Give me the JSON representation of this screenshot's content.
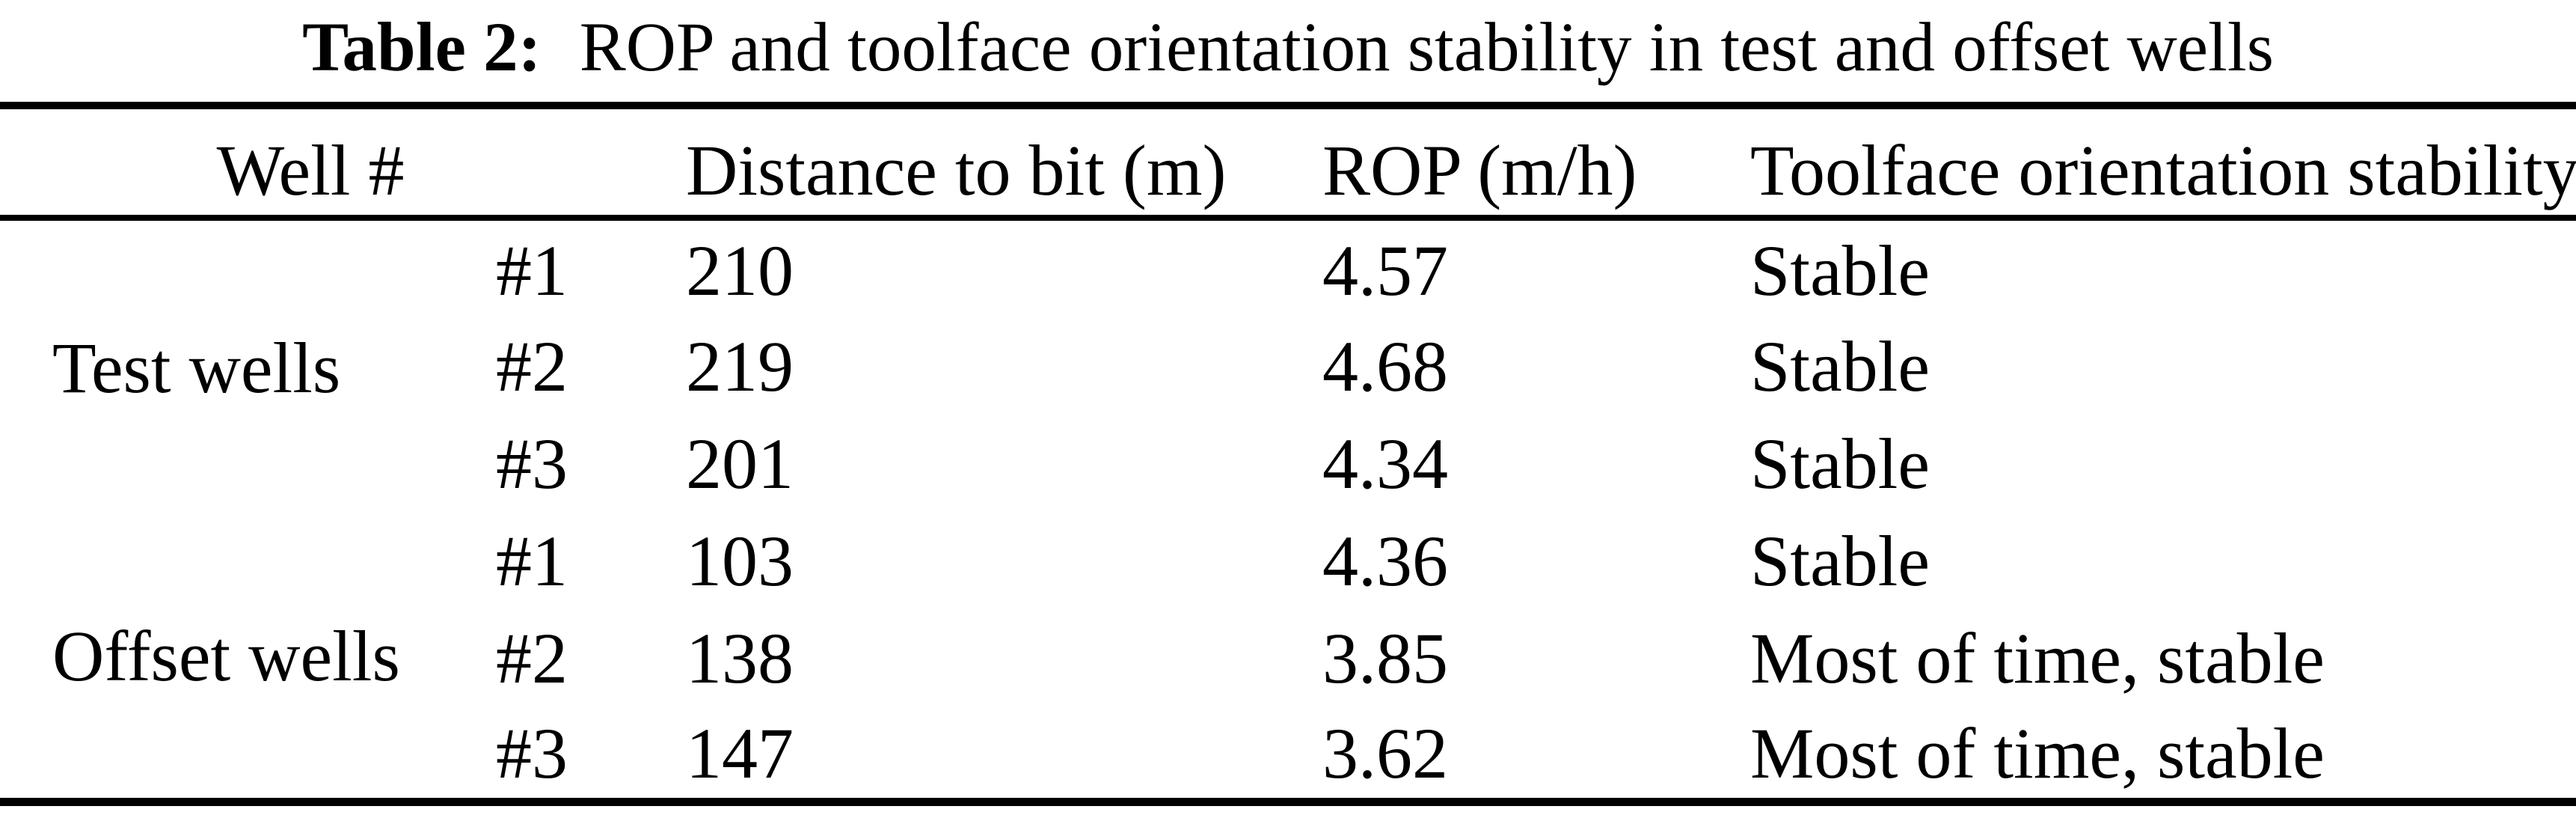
{
  "page": {
    "background": "#ffffff",
    "text_color": "#000000",
    "rule_color": "#000000"
  },
  "title": {
    "label": "Table 2:",
    "text": "ROP and toolface orientation stability in test and offset wells"
  },
  "table": {
    "headers": {
      "well": "Well #",
      "distance": "Distance to bit (m)",
      "rop": "ROP (m/h)",
      "stability": "Toolface orientation stability"
    },
    "groups": [
      {
        "label": "Test wells",
        "rows": [
          {
            "well": "#1",
            "distance": "210",
            "rop": "4.57",
            "stability": "Stable"
          },
          {
            "well": "#2",
            "distance": "219",
            "rop": "4.68",
            "stability": "Stable"
          },
          {
            "well": "#3",
            "distance": "201",
            "rop": "4.34",
            "stability": "Stable"
          }
        ]
      },
      {
        "label": "Offset wells",
        "rows": [
          {
            "well": "#1",
            "distance": "103",
            "rop": "4.36",
            "stability": "Stable"
          },
          {
            "well": "#2",
            "distance": "138",
            "rop": "3.85",
            "stability": "Most of time, stable"
          },
          {
            "well": "#3",
            "distance": "147",
            "rop": "3.62",
            "stability": "Most of time, stable"
          }
        ]
      }
    ]
  },
  "chart_data": {
    "type": "table",
    "title": "Table 2: ROP and toolface orientation stability in test and offset wells",
    "columns": [
      "Well #",
      "Distance to bit (m)",
      "ROP (m/h)",
      "Toolface orientation stability"
    ],
    "rows": [
      [
        "Test wells",
        "#1",
        210,
        4.57,
        "Stable"
      ],
      [
        "Test wells",
        "#2",
        219,
        4.68,
        "Stable"
      ],
      [
        "Test wells",
        "#3",
        201,
        4.34,
        "Stable"
      ],
      [
        "Offset wells",
        "#1",
        103,
        4.36,
        "Stable"
      ],
      [
        "Offset wells",
        "#2",
        138,
        3.85,
        "Most of time, stable"
      ],
      [
        "Offset wells",
        "#3",
        147,
        3.62,
        "Most of time, stable"
      ]
    ]
  }
}
